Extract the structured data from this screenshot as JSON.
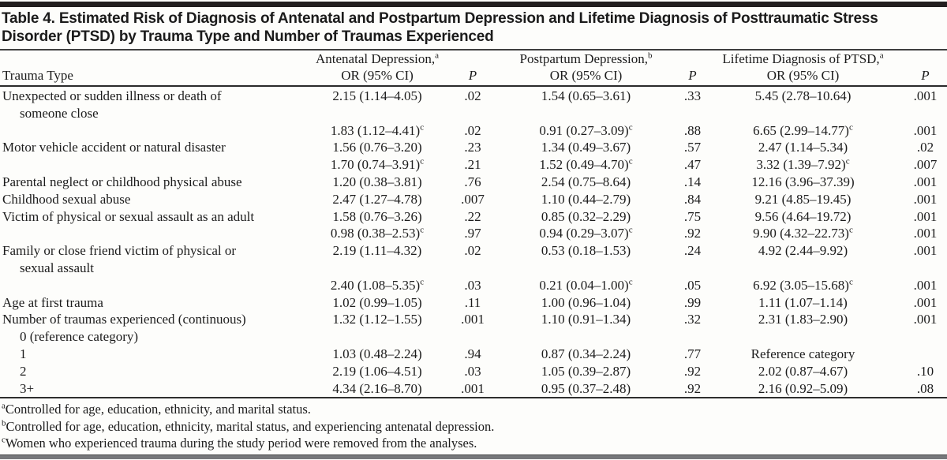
{
  "title": {
    "line1": "Table 4. Estimated Risk of Diagnosis of Antenatal and Postpartum Depression and Lifetime Diagnosis of Posttraumatic Stress",
    "line2": "Disorder (PTSD) by Trauma Type and Number of Traumas Experienced"
  },
  "colors": {
    "top_rule": "#221e1f",
    "title_rule": "#3f3f3f",
    "bottom_rule": "#77787b",
    "text": "#1c1c1c"
  },
  "table": {
    "header": {
      "trauma_type": "Trauma Type",
      "p": "P",
      "groups": [
        {
          "name": "Antenatal Depression,",
          "sup": "a",
          "sub": "OR (95% CI)"
        },
        {
          "name": "Postpartum Depression,",
          "sup": "b",
          "sub": "OR (95% CI)"
        },
        {
          "name": "Lifetime Diagnosis of PTSD,",
          "sup": "a",
          "sub": "OR (95% CI)"
        }
      ]
    },
    "rows": [
      {
        "label": "Unexpected or sudden illness or death of",
        "label2": "someone close",
        "cells": [
          {
            "v": "2.15 (1.14–4.05)"
          },
          {
            "v": ".02"
          },
          {
            "v": "1.54 (0.65–3.61)"
          },
          {
            "v": ".33"
          },
          {
            "v": "5.45 (2.78–10.64)"
          },
          {
            "v": ".001"
          }
        ]
      },
      {
        "label": "",
        "cells": [
          {
            "v": "1.83 (1.12–4.41)",
            "sup": "c"
          },
          {
            "v": ".02"
          },
          {
            "v": "0.91 (0.27–3.09)",
            "sup": "c"
          },
          {
            "v": ".88"
          },
          {
            "v": "6.65 (2.99–14.77)",
            "sup": "c"
          },
          {
            "v": ".001"
          }
        ]
      },
      {
        "label": "Motor vehicle accident or natural disaster",
        "cells": [
          {
            "v": "1.56 (0.76–3.20)"
          },
          {
            "v": ".23"
          },
          {
            "v": "1.34 (0.49–3.67)"
          },
          {
            "v": ".57"
          },
          {
            "v": "2.47 (1.14–5.34)"
          },
          {
            "v": ".02"
          }
        ]
      },
      {
        "label": "",
        "cells": [
          {
            "v": "1.70 (0.74–3.91)",
            "sup": "c"
          },
          {
            "v": ".21"
          },
          {
            "v": "1.52 (0.49–4.70)",
            "sup": "c"
          },
          {
            "v": ".47"
          },
          {
            "v": "3.32 (1.39–7.92)",
            "sup": "c"
          },
          {
            "v": ".007"
          }
        ]
      },
      {
        "label": "Parental neglect or childhood physical abuse",
        "cells": [
          {
            "v": "1.20 (0.38–3.81)"
          },
          {
            "v": ".76"
          },
          {
            "v": "2.54 (0.75–8.64)"
          },
          {
            "v": ".14"
          },
          {
            "v": "12.16 (3.96–37.39)"
          },
          {
            "v": ".001"
          }
        ]
      },
      {
        "label": "Childhood sexual abuse",
        "cells": [
          {
            "v": "2.47 (1.27–4.78)"
          },
          {
            "v": ".007"
          },
          {
            "v": "1.10 (0.44–2.79)"
          },
          {
            "v": ".84"
          },
          {
            "v": "9.21 (4.85–19.45)"
          },
          {
            "v": ".001"
          }
        ]
      },
      {
        "label": "Victim of physical or sexual assault as an adult",
        "cells": [
          {
            "v": "1.58 (0.76–3.26)"
          },
          {
            "v": ".22"
          },
          {
            "v": "0.85 (0.32–2.29)"
          },
          {
            "v": ".75"
          },
          {
            "v": "9.56 (4.64–19.72)"
          },
          {
            "v": ".001"
          }
        ]
      },
      {
        "label": "",
        "cells": [
          {
            "v": "0.98 (0.38–2.53)",
            "sup": "c"
          },
          {
            "v": ".97"
          },
          {
            "v": "0.94 (0.29–3.07)",
            "sup": "c"
          },
          {
            "v": ".92"
          },
          {
            "v": "9.90 (4.32–22.73)",
            "sup": "c"
          },
          {
            "v": ".001"
          }
        ]
      },
      {
        "label": "Family or close friend victim of physical or",
        "label2": "sexual assault",
        "cells": [
          {
            "v": "2.19 (1.11–4.32)"
          },
          {
            "v": ".02"
          },
          {
            "v": "0.53 (0.18–1.53)"
          },
          {
            "v": ".24"
          },
          {
            "v": "4.92 (2.44–9.92)"
          },
          {
            "v": ".001"
          }
        ]
      },
      {
        "label": "",
        "cells": [
          {
            "v": "2.40 (1.08–5.35)",
            "sup": "c"
          },
          {
            "v": ".03"
          },
          {
            "v": "0.21 (0.04–1.00)",
            "sup": "c"
          },
          {
            "v": ".05"
          },
          {
            "v": "6.92 (3.05–15.68)",
            "sup": "c"
          },
          {
            "v": ".001"
          }
        ]
      },
      {
        "label": "Age at first trauma",
        "cells": [
          {
            "v": "1.02 (0.99–1.05)"
          },
          {
            "v": ".11"
          },
          {
            "v": "1.00 (0.96–1.04)"
          },
          {
            "v": ".99"
          },
          {
            "v": "1.11 (1.07–1.14)"
          },
          {
            "v": ".001"
          }
        ]
      },
      {
        "label": "Number of traumas experienced (continuous)",
        "label2": "0 (reference category)",
        "cells": [
          {
            "v": "1.32 (1.12–1.55)"
          },
          {
            "v": ".001"
          },
          {
            "v": "1.10 (0.91–1.34)"
          },
          {
            "v": ".32"
          },
          {
            "v": "2.31 (1.83–2.90)"
          },
          {
            "v": ".001"
          }
        ]
      },
      {
        "label": "1",
        "indent": true,
        "cells": [
          {
            "v": "1.03 (0.48–2.24)"
          },
          {
            "v": ".94"
          },
          {
            "v": "0.87 (0.34–2.24)"
          },
          {
            "v": ".77"
          },
          {
            "v": "Reference category"
          },
          {
            "v": ""
          }
        ]
      },
      {
        "label": "2",
        "indent": true,
        "cells": [
          {
            "v": "2.19 (1.06–4.51)"
          },
          {
            "v": ".03"
          },
          {
            "v": "1.05 (0.39–2.87)"
          },
          {
            "v": ".92"
          },
          {
            "v": "2.02 (0.87–4.67)"
          },
          {
            "v": ".10"
          }
        ]
      },
      {
        "label": "3+",
        "indent": true,
        "cells": [
          {
            "v": "4.34 (2.16–8.70)"
          },
          {
            "v": ".001"
          },
          {
            "v": "0.95 (0.37–2.48)"
          },
          {
            "v": ".92"
          },
          {
            "v": "2.16 (0.92–5.09)"
          },
          {
            "v": ".08"
          }
        ]
      }
    ]
  },
  "footnotes": [
    {
      "sup": "a",
      "text": "Controlled for age, education, ethnicity, and marital status."
    },
    {
      "sup": "b",
      "text": "Controlled for age, education, ethnicity, marital status, and experiencing antenatal depression."
    },
    {
      "sup": "c",
      "text": "Women who experienced trauma during the study period were removed from the analyses."
    }
  ]
}
